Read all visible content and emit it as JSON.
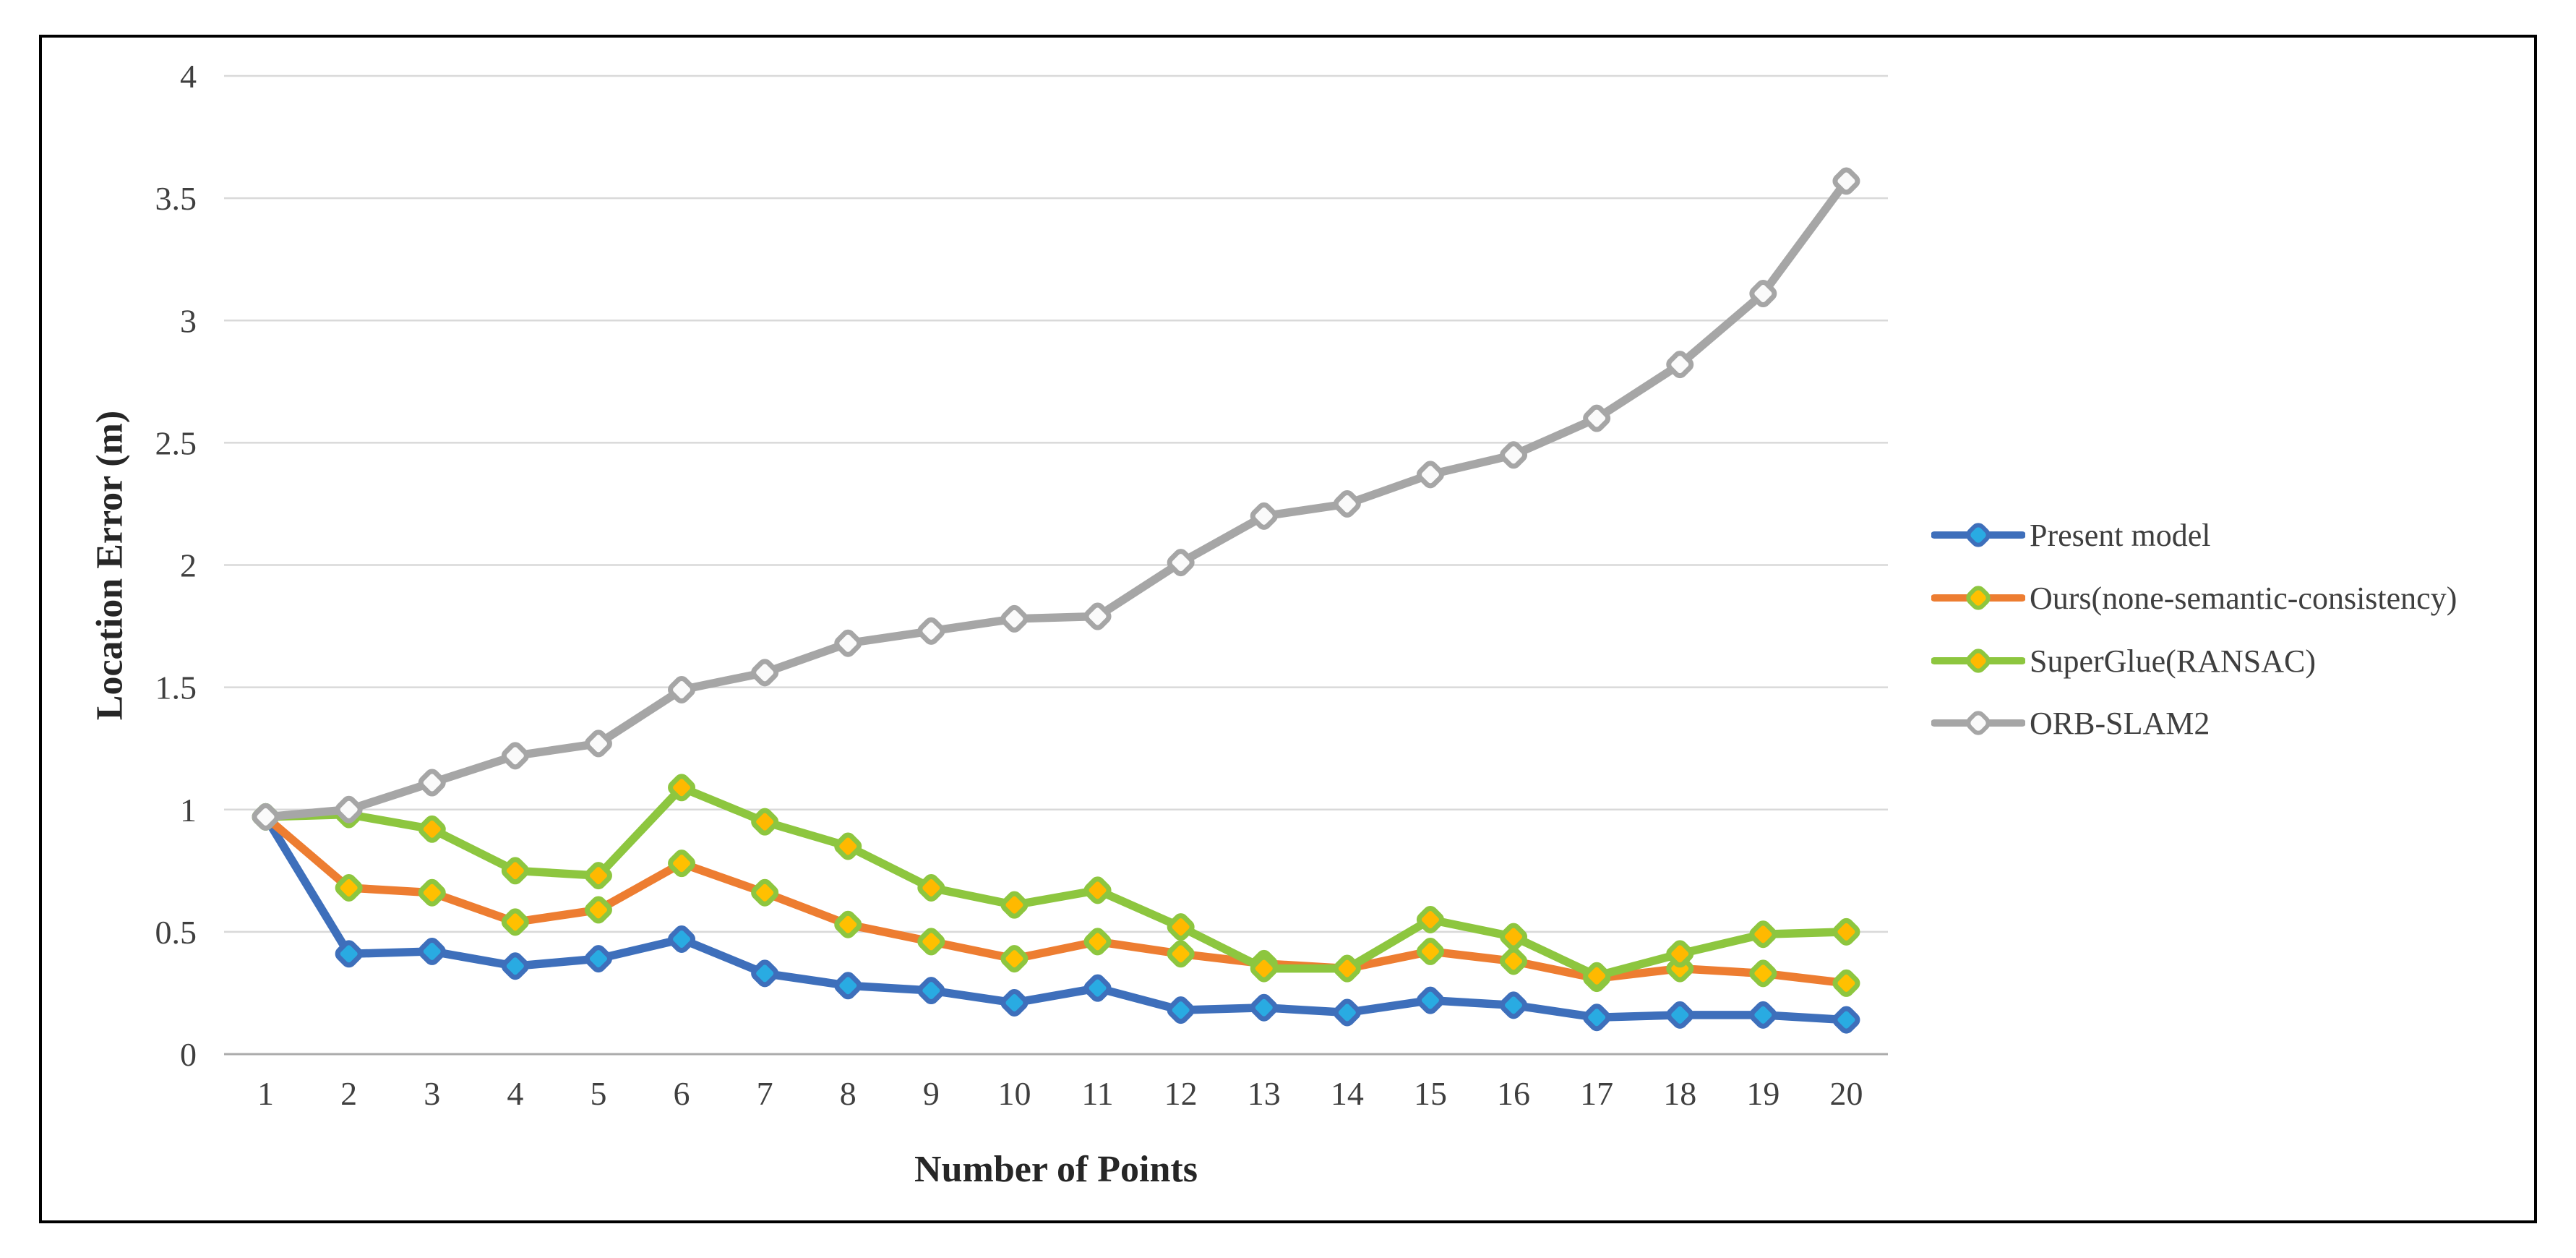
{
  "chart_data": {
    "type": "line",
    "title": "",
    "xlabel": "Number of Points",
    "ylabel": "Location Error (m)",
    "x": [
      1,
      2,
      3,
      4,
      5,
      6,
      7,
      8,
      9,
      10,
      11,
      12,
      13,
      14,
      15,
      16,
      17,
      18,
      19,
      20
    ],
    "ylim": [
      0,
      4
    ],
    "yticks": [
      0,
      0.5,
      1,
      1.5,
      2,
      2.5,
      3,
      3.5,
      4
    ],
    "grid": true,
    "legend_position": "right",
    "series": [
      {
        "name": "Present model",
        "color": "#3E6FBB",
        "marker_fill": "#29ABE2",
        "marker_stroke": "#3E6FBB",
        "values": [
          0.97,
          0.41,
          0.42,
          0.36,
          0.39,
          0.47,
          0.33,
          0.28,
          0.26,
          0.21,
          0.27,
          0.18,
          0.19,
          0.17,
          0.22,
          0.2,
          0.15,
          0.16,
          0.16,
          0.14
        ]
      },
      {
        "name": "Ours(none-semantic-consistency)",
        "color": "#ED7D31",
        "marker_fill": "#FFC000",
        "marker_stroke": "#8DC63F",
        "values": [
          0.97,
          0.68,
          0.66,
          0.54,
          0.59,
          0.78,
          0.66,
          0.53,
          0.46,
          0.39,
          0.46,
          0.41,
          0.37,
          0.35,
          0.42,
          0.38,
          0.31,
          0.35,
          0.33,
          0.29
        ]
      },
      {
        "name": "SuperGlue(RANSAC)",
        "color": "#8DC63F",
        "marker_fill": "#FFB900",
        "marker_stroke": "#8DC63F",
        "values": [
          0.97,
          0.98,
          0.92,
          0.75,
          0.73,
          1.09,
          0.95,
          0.85,
          0.68,
          0.61,
          0.67,
          0.52,
          0.35,
          0.35,
          0.55,
          0.48,
          0.32,
          0.41,
          0.49,
          0.5
        ]
      },
      {
        "name": "ORB-SLAM2",
        "color": "#A6A6A6",
        "marker_fill": "#FAFAFA",
        "marker_stroke": "#A6A6A6",
        "values": [
          0.97,
          1.0,
          1.11,
          1.22,
          1.27,
          1.49,
          1.56,
          1.68,
          1.73,
          1.78,
          1.79,
          2.01,
          2.2,
          2.25,
          2.37,
          2.45,
          2.6,
          2.82,
          3.11,
          3.57
        ]
      }
    ]
  },
  "styles": {
    "gridline_color": "#D9D9D9",
    "axis_line_color": "#ABABAB",
    "tick_label_color": "#3F3F3F",
    "title_color": "#262626",
    "frame_border_color": "#000000",
    "background": "#FFFFFF"
  }
}
